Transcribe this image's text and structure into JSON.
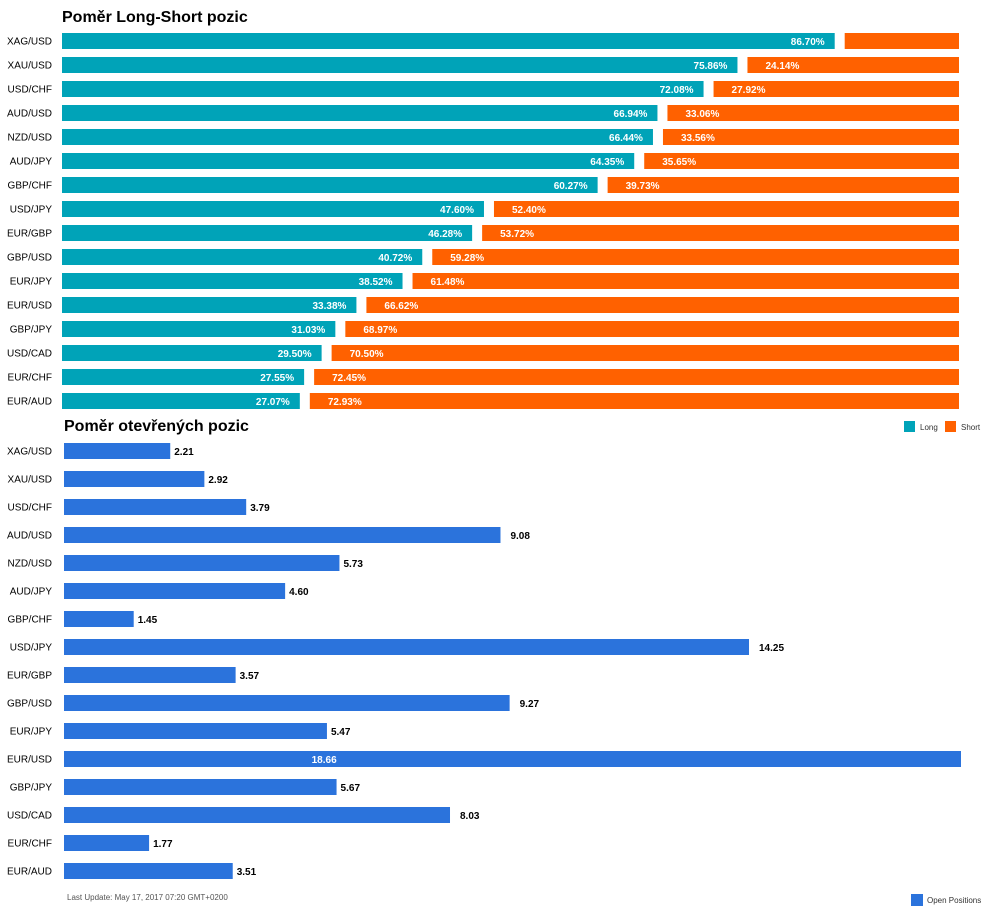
{
  "chart_data": [
    {
      "type": "bar",
      "stacked": true,
      "orientation": "horizontal",
      "title": "Poměr Long-Short pozic",
      "categories": [
        "XAG/USD",
        "XAU/USD",
        "USD/CHF",
        "AUD/USD",
        "NZD/USD",
        "AUD/JPY",
        "GBP/CHF",
        "USD/JPY",
        "EUR/GBP",
        "GBP/USD",
        "EUR/JPY",
        "EUR/USD",
        "GBP/JPY",
        "USD/CAD",
        "EUR/CHF",
        "EUR/AUD"
      ],
      "series": [
        {
          "name": "Long",
          "color": "#00a3b8",
          "values": [
            86.7,
            75.86,
            72.08,
            66.94,
            66.44,
            64.35,
            60.27,
            47.6,
            46.28,
            40.72,
            38.52,
            33.38,
            31.03,
            29.5,
            27.55,
            27.07
          ],
          "labels": [
            "86.70%",
            "75.86%",
            "72.08%",
            "66.94%",
            "66.44%",
            "64.35%",
            "60.27%",
            "47.60%",
            "46.28%",
            "40.72%",
            "38.52%",
            "33.38%",
            "31.03%",
            "29.50%",
            "27.55%",
            "27.07%"
          ]
        },
        {
          "name": "Short",
          "color": "#ff6100",
          "values": [
            13.3,
            24.14,
            27.92,
            33.06,
            33.56,
            35.65,
            39.73,
            52.4,
            53.72,
            59.28,
            61.48,
            66.62,
            68.97,
            70.5,
            72.45,
            72.93
          ],
          "labels": [
            "",
            "24.14%",
            "27.92%",
            "33.06%",
            "33.56%",
            "35.65%",
            "39.73%",
            "52.40%",
            "53.72%",
            "59.28%",
            "61.48%",
            "66.62%",
            "68.97%",
            "70.50%",
            "72.45%",
            "72.93%"
          ]
        }
      ],
      "xlim": [
        0,
        100
      ],
      "legend_position": "bottom-right"
    },
    {
      "type": "bar",
      "orientation": "horizontal",
      "title": "Poměr otevřených pozic",
      "categories": [
        "XAG/USD",
        "XAU/USD",
        "USD/CHF",
        "AUD/USD",
        "NZD/USD",
        "AUD/JPY",
        "GBP/CHF",
        "USD/JPY",
        "EUR/GBP",
        "GBP/USD",
        "EUR/JPY",
        "EUR/USD",
        "GBP/JPY",
        "USD/CAD",
        "EUR/CHF",
        "EUR/AUD"
      ],
      "series": [
        {
          "name": "Open Positions",
          "color": "#2b73dc",
          "values": [
            2.21,
            2.92,
            3.79,
            9.08,
            5.73,
            4.6,
            1.45,
            14.25,
            3.57,
            9.27,
            5.47,
            18.66,
            5.67,
            8.03,
            1.77,
            3.51
          ],
          "labels": [
            "2.21",
            "2.92",
            "3.79",
            "9.08",
            "5.73",
            "4.60",
            "1.45",
            "14.25",
            "3.57",
            "9.27",
            "5.47",
            "18.66",
            "5.67",
            "8.03",
            "1.77",
            "3.51"
          ]
        }
      ],
      "xlim": [
        0,
        18.66
      ],
      "legend_position": "bottom-right"
    }
  ],
  "footer": {
    "last_update": "Last Update: May 17, 2017 07:20 GMT+0200"
  }
}
